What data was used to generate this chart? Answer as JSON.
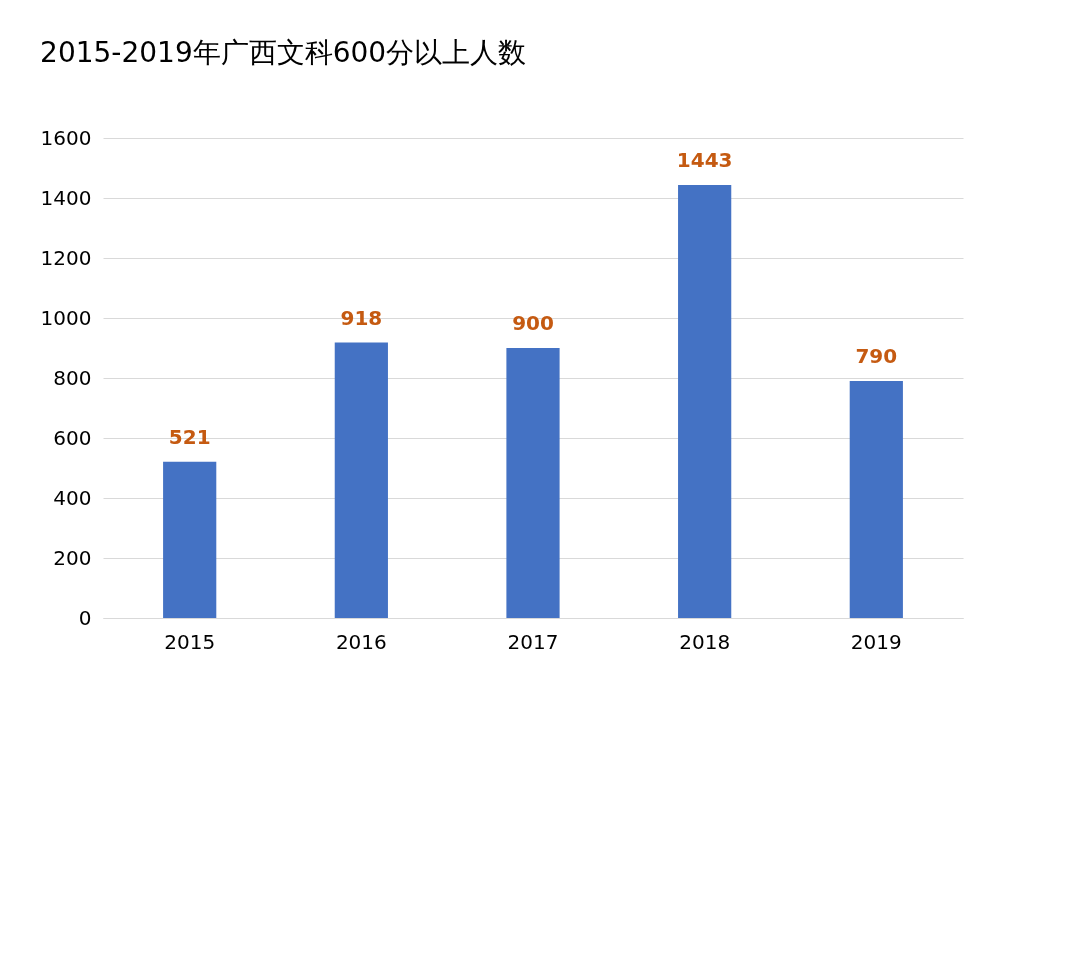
{
  "chart_data": {
    "type": "bar",
    "title": "2015-2019年广西文科600分以上人数",
    "categories": [
      "2015",
      "2016",
      "2017",
      "2018",
      "2019"
    ],
    "values": [
      521,
      918,
      900,
      1443,
      790
    ],
    "color": "#4472c4",
    "ylim": [
      0,
      1600
    ],
    "yticks": [
      0,
      200,
      400,
      600,
      800,
      1000,
      1200,
      1400,
      1600
    ],
    "grid": "y",
    "data_labels": true
  }
}
